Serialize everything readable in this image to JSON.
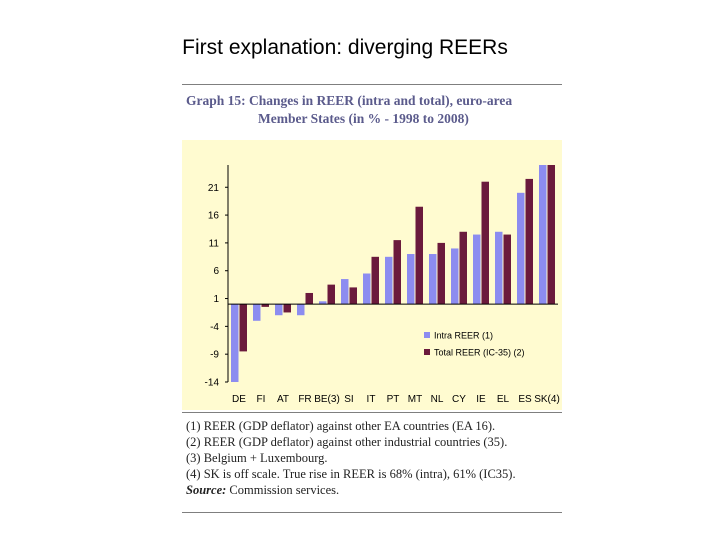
{
  "slide": {
    "title": "First explanation: diverging REERs"
  },
  "figure": {
    "title_line1": "Graph 15: Changes in REER (intra and total), euro-area",
    "title_line2": "Member States (in % - 1998 to 2008)",
    "notes": [
      "(1) REER (GDP deflator) against other EA countries (EA 16).",
      "(2) REER (GDP deflator) against other industrial countries (35).",
      "(3) Belgium + Luxembourg.",
      "(4) SK is off scale. True rise in REER is 68% (intra), 61% (IC35)."
    ],
    "source_label": "Source:",
    "source_text": " Commission services."
  },
  "colors": {
    "intra": "#8c8cf0",
    "total": "#6b1a3c",
    "plot_bg": "#fffbd0",
    "axis": "#000000"
  },
  "chart_data": {
    "type": "bar",
    "categories": [
      "DE",
      "FI",
      "AT",
      "FR",
      "BE(3)",
      "SI",
      "IT",
      "PT",
      "MT",
      "NL",
      "CY",
      "IE",
      "EL",
      "ES",
      "SK(4)"
    ],
    "series": [
      {
        "name": "Intra REER (1)",
        "values": [
          -14,
          -3,
          -2,
          -2,
          0.5,
          4.5,
          5.5,
          8.5,
          9,
          9,
          10,
          12.5,
          13,
          20,
          25
        ]
      },
      {
        "name": "Total REER (IC-35) (2)",
        "values": [
          -8.5,
          -0.5,
          -1.5,
          2,
          3.5,
          3,
          8.5,
          11.5,
          17.5,
          11,
          13,
          22,
          12.5,
          22.5,
          25
        ]
      }
    ],
    "yticks": [
      21,
      16,
      11,
      6,
      1,
      -4,
      -9,
      -14
    ],
    "ylim": [
      -14,
      25
    ],
    "legend_position": "bottom-right",
    "grid": false
  }
}
